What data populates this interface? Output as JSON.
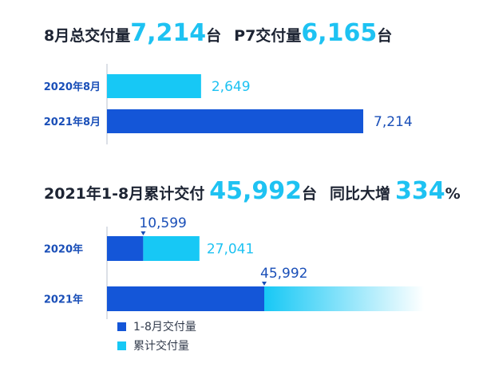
{
  "headline1": {
    "label_a": "8月总交付量",
    "value_a": "7,214",
    "unit_a": "台",
    "label_b": "P7交付量",
    "value_b": "6,165",
    "unit_b": "台"
  },
  "headline2": {
    "label_a": "2021年1-8月累计交付",
    "value_a": "45,992",
    "unit_a": "台",
    "label_b": "同比大增",
    "value_b": "334",
    "unit_b": "%"
  },
  "colors": {
    "dark_blue": "#1456d8",
    "cyan": "#17c8f5",
    "label_blue": "#1a4fb8",
    "text": "#1d2433"
  },
  "chart_data": [
    {
      "type": "bar",
      "orientation": "horizontal",
      "categories": [
        "2020年8月",
        "2021年8月"
      ],
      "values": [
        2649,
        7214
      ],
      "value_labels": [
        "2,649",
        "7,214"
      ],
      "bar_colors": [
        "#17c8f5",
        "#1456d8"
      ],
      "xlim": [
        0,
        7214
      ]
    },
    {
      "type": "bar",
      "orientation": "horizontal",
      "stacked": true,
      "categories": [
        "2020年",
        "2021年"
      ],
      "series": [
        {
          "name": "1-8月交付量",
          "values": [
            10599,
            45992
          ],
          "value_labels": [
            "10,599",
            "45,992"
          ],
          "color": "#1456d8"
        },
        {
          "name": "累计交付量",
          "values": [
            27041,
            null
          ],
          "total_labels": [
            "27,041",
            ""
          ],
          "color": "#17c8f5"
        }
      ],
      "legend": [
        "1-8月交付量",
        "累计交付量"
      ],
      "legend_position": "bottom-left"
    }
  ]
}
